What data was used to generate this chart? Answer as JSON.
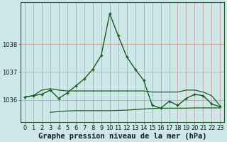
{
  "title": "Graphe pression niveau de la mer (hPa)",
  "bg_color": "#cce8e8",
  "grid_color": "#d4a0a0",
  "line_color": "#1a5c1a",
  "xlim": [
    -0.5,
    23.5
  ],
  "ylim": [
    1035.2,
    1039.5
  ],
  "yticks": [
    1036,
    1037,
    1038
  ],
  "ytick_labels": [
    "1036",
    "1037",
    "1038"
  ],
  "xticks": [
    0,
    1,
    2,
    3,
    4,
    5,
    6,
    7,
    8,
    9,
    10,
    11,
    12,
    13,
    14,
    15,
    16,
    17,
    18,
    19,
    20,
    21,
    22,
    23
  ],
  "main_x": [
    0,
    1,
    2,
    3,
    4,
    5,
    6,
    7,
    8,
    9,
    10,
    11,
    12,
    13,
    14,
    15,
    16,
    17,
    18,
    19,
    20,
    21,
    22,
    23
  ],
  "main_y": [
    1036.1,
    1036.15,
    1036.2,
    1036.35,
    1036.05,
    1036.25,
    1036.5,
    1036.75,
    1037.1,
    1037.6,
    1039.1,
    1038.3,
    1037.55,
    1037.1,
    1036.7,
    1035.8,
    1035.7,
    1035.95,
    1035.8,
    1036.05,
    1036.2,
    1036.15,
    1035.85,
    1035.75
  ],
  "upper_x": [
    0,
    1,
    2,
    3,
    4,
    5,
    6,
    7,
    8,
    9,
    10,
    11,
    12,
    13,
    14,
    15,
    16,
    17,
    18,
    19,
    20,
    21,
    22,
    23
  ],
  "upper_y": [
    1036.1,
    1036.15,
    1036.35,
    1036.4,
    1036.35,
    1036.32,
    1036.32,
    1036.32,
    1036.32,
    1036.32,
    1036.32,
    1036.32,
    1036.32,
    1036.32,
    1036.32,
    1036.28,
    1036.28,
    1036.28,
    1036.28,
    1036.35,
    1036.35,
    1036.28,
    1036.15,
    1035.78
  ],
  "lower_x": [
    3,
    4,
    5,
    6,
    7,
    8,
    9,
    10,
    11,
    12,
    13,
    14,
    15,
    16,
    17,
    18,
    19,
    20,
    21,
    22,
    23
  ],
  "lower_y": [
    1035.55,
    1035.58,
    1035.6,
    1035.61,
    1035.61,
    1035.61,
    1035.61,
    1035.61,
    1035.62,
    1035.63,
    1035.65,
    1035.67,
    1035.69,
    1035.7,
    1035.7,
    1035.7,
    1035.7,
    1035.71,
    1035.71,
    1035.71,
    1035.71
  ],
  "title_fontsize": 7.5,
  "tick_fontsize": 6.0
}
